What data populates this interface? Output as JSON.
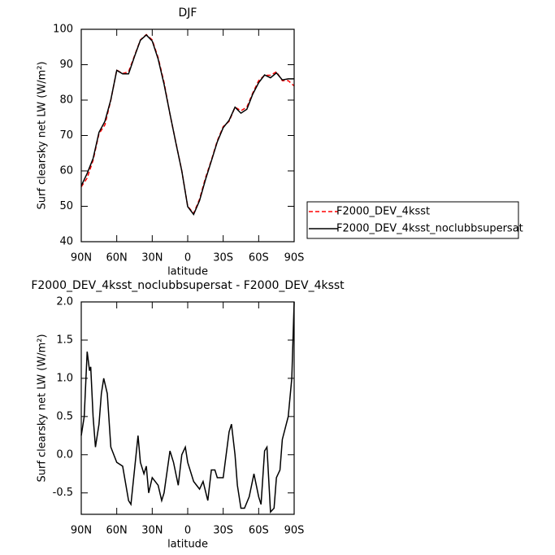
{
  "chart_data": [
    {
      "type": "line",
      "title": "DJF",
      "xlabel": "latitude",
      "ylabel": "Surf clearsky net LW (W/m²)",
      "x": [
        90,
        85,
        80,
        75,
        70,
        65,
        60,
        55,
        50,
        45,
        40,
        35,
        30,
        25,
        20,
        15,
        10,
        5,
        0,
        -5,
        -10,
        -15,
        -20,
        -25,
        -30,
        -35,
        -40,
        -45,
        -50,
        -55,
        -60,
        -65,
        -70,
        -75,
        -80,
        -85,
        -90
      ],
      "series": [
        {
          "name": "F2000_DEV_4ksst",
          "color": "#ff0000",
          "dash": true,
          "values": [
            55.5,
            58,
            63,
            70.5,
            73,
            80,
            88.5,
            87.5,
            88,
            92.5,
            97,
            98.5,
            97,
            92,
            85,
            76,
            68,
            60,
            50,
            48,
            52,
            58,
            63,
            68.5,
            72.5,
            74,
            78,
            77,
            78,
            82,
            85.5,
            87,
            87,
            88,
            85.5,
            85.5,
            84
          ]
        },
        {
          "name": "F2000_DEV_4ksst_noclubbsupersat",
          "color": "#000000",
          "dash": false,
          "values": [
            55.8,
            59.3,
            63.5,
            70.9,
            74,
            80.1,
            88.4,
            87.4,
            87.4,
            92.3,
            96.9,
            98.4,
            96.7,
            91.6,
            84.5,
            76.1,
            67.9,
            60,
            49.9,
            47.7,
            51.6,
            57.5,
            62.8,
            68.2,
            72.2,
            74.3,
            78,
            76.3,
            77.4,
            81.7,
            84.9,
            87.1,
            86.3,
            87.7,
            85.7,
            86,
            86
          ]
        }
      ],
      "xlim": [
        90,
        -90
      ],
      "xticks": [
        {
          "value": 90,
          "label": "90N"
        },
        {
          "value": 60,
          "label": "60N"
        },
        {
          "value": 30,
          "label": "30N"
        },
        0,
        {
          "value": -30,
          "label": "30S"
        },
        {
          "value": -60,
          "label": "60S"
        },
        {
          "value": -90,
          "label": "90S"
        }
      ],
      "ylim": [
        40,
        100
      ],
      "yticks": [
        40,
        50,
        60,
        70,
        80,
        90,
        100
      ],
      "legend": "right"
    },
    {
      "type": "line",
      "title": "F2000_DEV_4ksst_noclubbsupersat - F2000_DEV_4ksst",
      "xlabel": "latitude",
      "ylabel": "Surf clearsky net LW (W/m²)",
      "color": "#000000",
      "x": [
        90,
        87.5,
        85,
        83,
        82,
        80,
        78,
        75,
        73,
        71,
        68,
        65,
        60,
        55,
        50,
        48,
        45,
        42,
        40,
        37,
        35,
        33,
        30,
        25,
        22,
        20,
        15,
        12,
        8,
        5,
        2,
        0,
        -5,
        -10,
        -13,
        -17,
        -20,
        -23,
        -25,
        -30,
        -35,
        -37,
        -40,
        -42,
        -45,
        -48,
        -52,
        -56,
        -60,
        -62,
        -65,
        -67,
        -70,
        -73,
        -75,
        -78,
        -80,
        -85,
        -88,
        -90
      ],
      "values": [
        0.25,
        0.5,
        1.35,
        1.1,
        1.15,
        0.5,
        0.1,
        0.4,
        0.8,
        1.0,
        0.8,
        0.1,
        -0.1,
        -0.15,
        -0.6,
        -0.65,
        -0.2,
        0.25,
        -0.1,
        -0.25,
        -0.15,
        -0.5,
        -0.3,
        -0.4,
        -0.6,
        -0.5,
        0.05,
        -0.1,
        -0.4,
        0.0,
        0.1,
        -0.1,
        -0.35,
        -0.45,
        -0.35,
        -0.6,
        -0.2,
        -0.2,
        -0.3,
        -0.3,
        0.3,
        0.4,
        0.0,
        -0.4,
        -0.7,
        -0.7,
        -0.55,
        -0.25,
        -0.55,
        -0.65,
        0.05,
        0.1,
        -0.75,
        -0.7,
        -0.3,
        -0.2,
        0.2,
        0.5,
        1.0,
        2.0
      ],
      "xlim": [
        90,
        -90
      ],
      "xticks": [
        {
          "value": 90,
          "label": "90N"
        },
        {
          "value": 60,
          "label": "60N"
        },
        {
          "value": 30,
          "label": "30N"
        },
        0,
        {
          "value": -30,
          "label": "30S"
        },
        {
          "value": -60,
          "label": "60S"
        },
        {
          "value": -90,
          "label": "90S"
        }
      ],
      "ylim": [
        -0.78,
        2.0
      ],
      "yticks": [
        -0.5,
        {
          "value": 0,
          "label": "0.0"
        },
        0.5,
        {
          "value": 1,
          "label": "1.0"
        },
        1.5,
        {
          "value": 2,
          "label": "2.0"
        }
      ]
    }
  ]
}
